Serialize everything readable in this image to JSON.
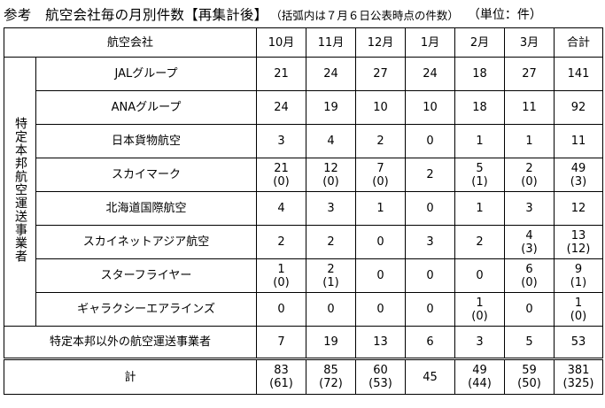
{
  "heading": {
    "main": "参考　航空会社毎の月別件数【再集計後】",
    "sub": "（括弧内は７月６日公表時点の件数）",
    "unit": "（単位：件）"
  },
  "table": {
    "header": {
      "airline": "航空会社",
      "months": [
        "10月",
        "11月",
        "12月",
        "1月",
        "2月",
        "3月"
      ],
      "total": "合計"
    },
    "group_label": "特定本邦航空運送事業者",
    "rows": [
      {
        "name": "JALグループ",
        "values": [
          "21",
          "24",
          "27",
          "24",
          "18",
          "27",
          "141"
        ],
        "prev": [
          "",
          "",
          "",
          "",
          "",
          "",
          ""
        ]
      },
      {
        "name": "ANAグループ",
        "values": [
          "24",
          "19",
          "10",
          "10",
          "18",
          "11",
          "92"
        ],
        "prev": [
          "",
          "",
          "",
          "",
          "",
          "",
          ""
        ]
      },
      {
        "name": "日本貨物航空",
        "values": [
          "3",
          "4",
          "2",
          "0",
          "1",
          "1",
          "11"
        ],
        "prev": [
          "",
          "",
          "",
          "",
          "",
          "",
          ""
        ]
      },
      {
        "name": "スカイマーク",
        "values": [
          "21",
          "12",
          "7",
          "2",
          "5",
          "2",
          "49"
        ],
        "prev": [
          "(0)",
          "(0)",
          "(0)",
          "",
          "(1)",
          "(0)",
          "(3)"
        ]
      },
      {
        "name": "北海道国際航空",
        "values": [
          "4",
          "3",
          "1",
          "0",
          "1",
          "3",
          "12"
        ],
        "prev": [
          "",
          "",
          "",
          "",
          "",
          "",
          ""
        ]
      },
      {
        "name": "スカイネットアジア航空",
        "values": [
          "2",
          "2",
          "0",
          "3",
          "2",
          "4",
          "13"
        ],
        "prev": [
          "",
          "",
          "",
          "",
          "",
          "(3)",
          "(12)"
        ]
      },
      {
        "name": "スターフライヤー",
        "values": [
          "1",
          "2",
          "0",
          "0",
          "0",
          "6",
          "9"
        ],
        "prev": [
          "(0)",
          "(1)",
          "",
          "",
          "",
          "(0)",
          "(1)"
        ]
      },
      {
        "name": "ギャラクシーエアラインズ",
        "values": [
          "0",
          "0",
          "0",
          "0",
          "1",
          "0",
          "1"
        ],
        "prev": [
          "",
          "",
          "",
          "",
          "(0)",
          "",
          "(0)"
        ]
      }
    ],
    "other": {
      "name": "特定本邦以外の航空運送事業者",
      "values": [
        "7",
        "19",
        "13",
        "6",
        "3",
        "5",
        "53"
      ],
      "prev": [
        "",
        "",
        "",
        "",
        "",
        "",
        ""
      ]
    },
    "total": {
      "name": "計",
      "values": [
        "83",
        "85",
        "60",
        "45",
        "49",
        "59",
        "381"
      ],
      "prev": [
        "(61)",
        "(72)",
        "(53)",
        "",
        "(44)",
        "(50)",
        "(325)"
      ]
    }
  }
}
